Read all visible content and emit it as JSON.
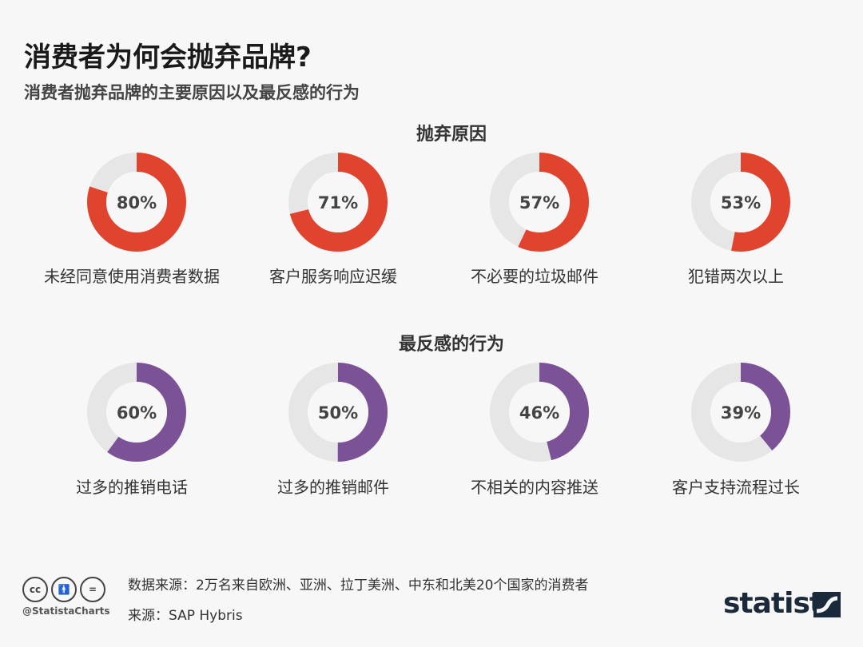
{
  "title": "消费者为何会抛弃品牌?",
  "subtitle": "消费者抛弃品牌的主要原因以及最反感的行为",
  "colors": {
    "red": "#e0442f",
    "purple": "#7b5296",
    "track": "#e6e6e6"
  },
  "chart_data": [
    {
      "type": "pie",
      "title": "抛弃原因",
      "categories": [
        "未经同意使用消费者数据",
        "客户服务响应迟缓",
        "不必要的垃圾邮件",
        "犯错两次以上"
      ],
      "values": [
        80,
        71,
        57,
        53
      ],
      "labels": [
        "80%",
        "71%",
        "57%",
        "53%"
      ],
      "unit": "%"
    },
    {
      "type": "pie",
      "title": "最反感的行为",
      "categories": [
        "过多的推销电话",
        "过多的推销邮件",
        "不相关的内容推送",
        "客户支持流程过长"
      ],
      "values": [
        60,
        50,
        46,
        39
      ],
      "labels": [
        "60%",
        "50%",
        "46%",
        "39%"
      ],
      "unit": "%"
    }
  ],
  "footer": {
    "data_source": "数据来源：2万名来自欧洲、亚洲、拉丁美洲、中东和北美20个国家的消费者",
    "source": "来源：SAP Hybris",
    "handle": "@StatistaCharts",
    "logo": "statista",
    "cc_icons": [
      "cc",
      "by",
      "nd"
    ]
  }
}
